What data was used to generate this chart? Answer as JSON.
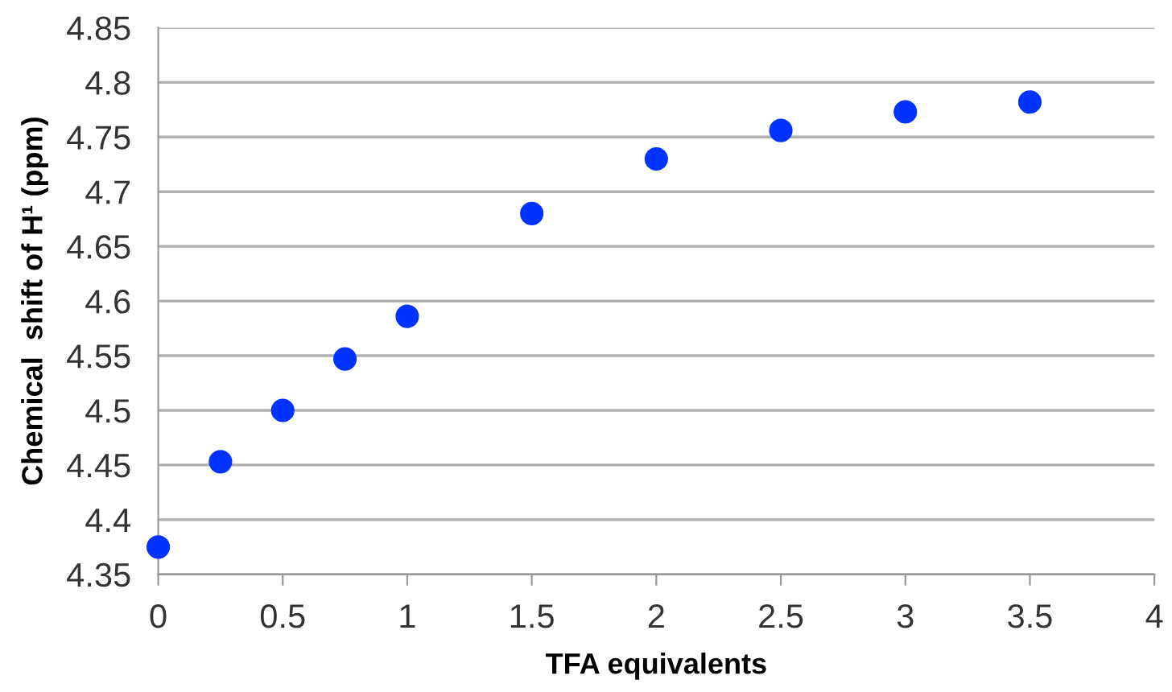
{
  "chart_data": {
    "type": "scatter",
    "xlabel": "TFA equivalents",
    "ylabel": "Chemical  shift of H¹ (ppm)",
    "x": [
      0,
      0.25,
      0.5,
      0.75,
      1,
      1.5,
      2,
      2.5,
      3,
      3.5
    ],
    "series": [
      {
        "color": "#0033ff",
        "values": [
          4.375,
          4.453,
          4.5,
          4.547,
          4.586,
          4.68,
          4.73,
          4.756,
          4.773,
          4.782
        ]
      }
    ],
    "xlim": [
      0,
      4
    ],
    "xticks": [
      0,
      0.5,
      1,
      1.5,
      2,
      2.5,
      3,
      3.5,
      4
    ],
    "ylim": [
      4.35,
      4.85
    ],
    "yticks": [
      4.35,
      4.4,
      4.45,
      4.5,
      4.55,
      4.6,
      4.65,
      4.7,
      4.75,
      4.8,
      4.85
    ],
    "grid": "y",
    "marker": "circle",
    "legend": false
  }
}
